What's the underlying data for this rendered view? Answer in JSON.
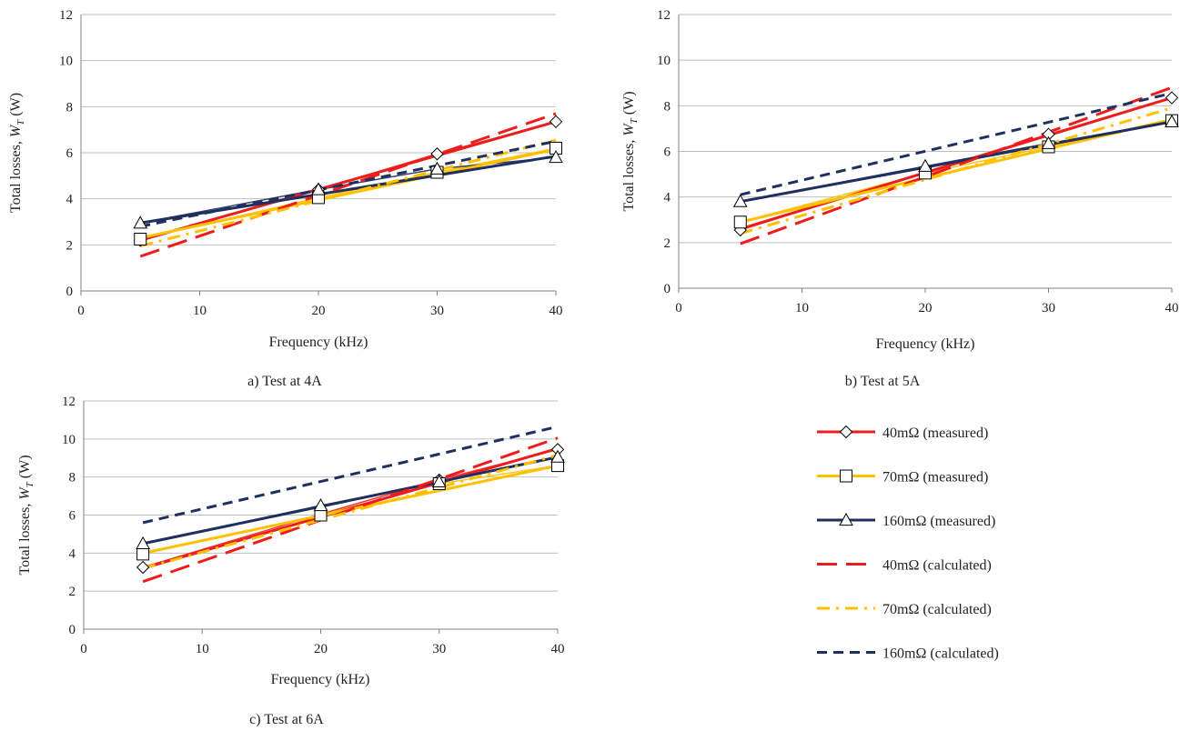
{
  "colors": {
    "red": "#ee1c1c",
    "orange": "#ffc000",
    "navy": "#1f2f5e",
    "grid": "#bfbfbf",
    "axis": "#808080"
  },
  "legend": [
    {
      "label": "40mΩ (measured)",
      "color": "#ee1c1c",
      "dash": "solid",
      "marker": "diamond"
    },
    {
      "label": "70mΩ (measured)",
      "color": "#ffc000",
      "dash": "solid",
      "marker": "square"
    },
    {
      "label": "160mΩ (measured)",
      "color": "#1f2f5e",
      "dash": "solid",
      "marker": "triangle"
    },
    {
      "label": "40mΩ (calculated)",
      "color": "#ee1c1c",
      "dash": "long-dash",
      "marker": "none"
    },
    {
      "label": "70mΩ (calculated)",
      "color": "#ffc000",
      "dash": "dash-dot",
      "marker": "none"
    },
    {
      "label": "160mΩ (calculated)",
      "color": "#1f2f5e",
      "dash": "dash",
      "marker": "none"
    }
  ],
  "chart_data": [
    {
      "type": "line",
      "caption": "a) Test at 4A",
      "xlabel": "Frequency (kHz)",
      "ylabel_prefix": "Total losses, ",
      "ylabel_symbol": "W",
      "ylabel_subscript": "T",
      "ylabel_suffix": " (W)",
      "xlim": [
        0,
        40
      ],
      "ylim": [
        0,
        12
      ],
      "xticks": [
        0,
        10,
        20,
        30,
        40
      ],
      "yticks": [
        0,
        2,
        4,
        6,
        8,
        10,
        12
      ],
      "grid": "horizontal",
      "x": [
        5,
        20,
        30,
        40
      ],
      "measured": [
        {
          "color": "#ee1c1c",
          "marker": "diamond",
          "values": [
            2.2,
            4.4,
            5.95,
            7.35
          ]
        },
        {
          "color": "#ffc000",
          "marker": "square",
          "values": [
            2.25,
            4.05,
            5.15,
            6.2
          ]
        },
        {
          "color": "#1f2f5e",
          "marker": "triangle",
          "values": [
            2.95,
            4.4,
            5.3,
            5.8
          ]
        }
      ],
      "trendlines": [
        {
          "color": "#ee1c1c",
          "style": "solid",
          "points": [
            [
              5,
              2.2
            ],
            [
              40,
              7.35
            ]
          ]
        },
        {
          "color": "#ffc000",
          "style": "solid",
          "points": [
            [
              5,
              2.3
            ],
            [
              40,
              6.15
            ]
          ]
        },
        {
          "color": "#1f2f5e",
          "style": "solid",
          "points": [
            [
              5,
              2.95
            ],
            [
              40,
              5.85
            ]
          ]
        },
        {
          "color": "#ee1c1c",
          "style": "long-dash",
          "points": [
            [
              5,
              1.5
            ],
            [
              40,
              7.7
            ]
          ]
        },
        {
          "color": "#ffc000",
          "style": "dash-dot",
          "points": [
            [
              5,
              1.95
            ],
            [
              40,
              6.55
            ]
          ]
        },
        {
          "color": "#1f2f5e",
          "style": "dash",
          "points": [
            [
              5,
              2.8
            ],
            [
              40,
              6.5
            ]
          ]
        }
      ]
    },
    {
      "type": "line",
      "caption": "b) Test at 5A",
      "xlabel": "Frequency (kHz)",
      "ylabel_prefix": "Total losses, ",
      "ylabel_symbol": "W",
      "ylabel_subscript": "T",
      "ylabel_suffix": " (W)",
      "xlim": [
        0,
        40
      ],
      "ylim": [
        0,
        12
      ],
      "xticks": [
        0,
        10,
        20,
        30,
        40
      ],
      "yticks": [
        0,
        2,
        4,
        6,
        8,
        10,
        12
      ],
      "grid": "horizontal",
      "x": [
        5,
        20,
        30,
        40
      ],
      "measured": [
        {
          "color": "#ee1c1c",
          "marker": "diamond",
          "values": [
            2.55,
            5.1,
            6.75,
            8.35
          ]
        },
        {
          "color": "#ffc000",
          "marker": "square",
          "values": [
            2.9,
            5.05,
            6.2,
            7.35
          ]
        },
        {
          "color": "#1f2f5e",
          "marker": "triangle",
          "values": [
            3.8,
            5.35,
            6.35,
            7.3
          ]
        }
      ],
      "trendlines": [
        {
          "color": "#ee1c1c",
          "style": "solid",
          "points": [
            [
              5,
              2.6
            ],
            [
              40,
              8.35
            ]
          ]
        },
        {
          "color": "#ffc000",
          "style": "solid",
          "points": [
            [
              5,
              2.9
            ],
            [
              40,
              7.4
            ]
          ]
        },
        {
          "color": "#1f2f5e",
          "style": "solid",
          "points": [
            [
              5,
              3.8
            ],
            [
              40,
              7.3
            ]
          ]
        },
        {
          "color": "#ee1c1c",
          "style": "long-dash",
          "points": [
            [
              5,
              1.95
            ],
            [
              40,
              8.8
            ]
          ]
        },
        {
          "color": "#ffc000",
          "style": "dash-dot",
          "points": [
            [
              5,
              2.4
            ],
            [
              40,
              7.9
            ]
          ]
        },
        {
          "color": "#1f2f5e",
          "style": "dash",
          "points": [
            [
              5,
              4.1
            ],
            [
              40,
              8.55
            ]
          ]
        }
      ]
    },
    {
      "type": "line",
      "caption": "c) Test at 6A",
      "xlabel": "Frequency (kHz)",
      "ylabel_prefix": "Total losses, ",
      "ylabel_symbol": "W",
      "ylabel_subscript": "T",
      "ylabel_suffix": " (W)",
      "xlim": [
        0,
        40
      ],
      "ylim": [
        0,
        12
      ],
      "xticks": [
        0,
        10,
        20,
        30,
        40
      ],
      "yticks": [
        0,
        2,
        4,
        6,
        8,
        10,
        12
      ],
      "grid": "horizontal",
      "x": [
        5,
        20,
        30,
        40
      ],
      "measured": [
        {
          "color": "#ee1c1c",
          "marker": "diamond",
          "values": [
            3.25,
            6.05,
            7.85,
            9.45
          ]
        },
        {
          "color": "#ffc000",
          "marker": "square",
          "values": [
            3.95,
            6.0,
            7.65,
            8.6
          ]
        },
        {
          "color": "#1f2f5e",
          "marker": "triangle",
          "values": [
            4.5,
            6.5,
            7.75,
            9.05
          ]
        }
      ],
      "trendlines": [
        {
          "color": "#ee1c1c",
          "style": "solid",
          "points": [
            [
              5,
              3.2
            ],
            [
              40,
              9.5
            ]
          ]
        },
        {
          "color": "#ffc000",
          "style": "solid",
          "points": [
            [
              5,
              4.0
            ],
            [
              40,
              8.6
            ]
          ]
        },
        {
          "color": "#1f2f5e",
          "style": "solid",
          "points": [
            [
              5,
              4.5
            ],
            [
              40,
              9.05
            ]
          ]
        },
        {
          "color": "#ee1c1c",
          "style": "long-dash",
          "points": [
            [
              5,
              2.5
            ],
            [
              40,
              10.05
            ]
          ]
        },
        {
          "color": "#ffc000",
          "style": "dash-dot",
          "points": [
            [
              5,
              3.2
            ],
            [
              40,
              9.15
            ]
          ]
        },
        {
          "color": "#1f2f5e",
          "style": "dash",
          "points": [
            [
              5,
              5.6
            ],
            [
              40,
              10.65
            ]
          ]
        }
      ]
    }
  ]
}
